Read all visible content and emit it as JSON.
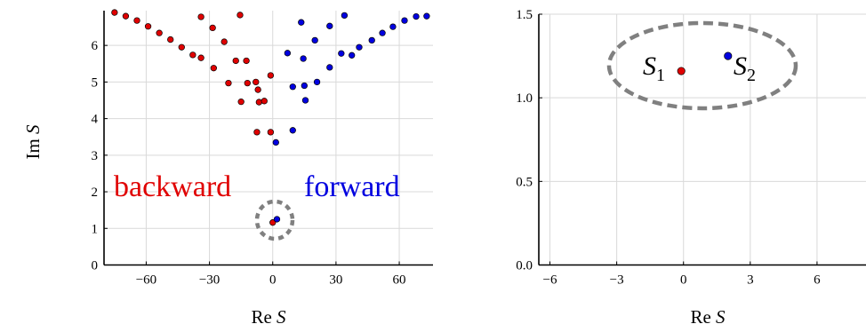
{
  "chart_data": [
    {
      "type": "scatter",
      "title": "",
      "xlabel": "Re S",
      "ylabel": "Im S",
      "xlim": [
        -80,
        76
      ],
      "ylim": [
        0,
        6.95
      ],
      "xticks": [
        -60,
        -30,
        0,
        30,
        60
      ],
      "yticks": [
        0,
        1,
        2,
        3,
        4,
        5,
        6
      ],
      "grid": true,
      "series": [
        {
          "name": "backward",
          "color": "#e00000",
          "points": [
            [
              -75,
              6.9
            ],
            [
              -69.7,
              6.8
            ],
            [
              -64.4,
              6.68
            ],
            [
              -59.1,
              6.52
            ],
            [
              -53.8,
              6.34
            ],
            [
              -48.5,
              6.16
            ],
            [
              -43.2,
              5.95
            ],
            [
              -37.9,
              5.74
            ],
            [
              -34,
              6.78
            ],
            [
              -28.5,
              6.48
            ],
            [
              -23,
              6.1
            ],
            [
              -17.5,
              5.58
            ],
            [
              -12,
              4.97
            ],
            [
              -6.5,
              4.45
            ],
            [
              -1,
              3.63
            ],
            [
              -15.5,
              6.83
            ],
            [
              -12.5,
              5.58
            ],
            [
              -8,
              5.0
            ],
            [
              -4,
              4.48
            ],
            [
              -34,
              5.66
            ],
            [
              -28,
              5.38
            ],
            [
              -21,
              4.97
            ],
            [
              -15,
              4.46
            ],
            [
              -7,
              4.79
            ],
            [
              -1,
              5.18
            ],
            [
              -7.5,
              3.63
            ],
            [
              0,
              1.16
            ]
          ]
        },
        {
          "name": "forward",
          "color": "#0000e0",
          "points": [
            [
              1.5,
              3.35
            ],
            [
              9.5,
              3.68
            ],
            [
              15.5,
              4.5
            ],
            [
              21,
              5.0
            ],
            [
              27,
              5.4
            ],
            [
              32.5,
              5.78
            ],
            [
              7,
              5.79
            ],
            [
              14.5,
              5.64
            ],
            [
              9.5,
              4.87
            ],
            [
              15,
              4.9
            ],
            [
              13.5,
              6.63
            ],
            [
              20,
              6.14
            ],
            [
              27,
              6.53
            ],
            [
              34,
              6.82
            ],
            [
              37.5,
              5.73
            ],
            [
              41,
              5.95
            ],
            [
              47,
              6.14
            ],
            [
              52,
              6.34
            ],
            [
              57,
              6.51
            ],
            [
              62.5,
              6.68
            ],
            [
              68,
              6.79
            ],
            [
              73,
              6.8
            ],
            [
              2,
              1.25
            ]
          ]
        }
      ],
      "annotations": [
        "backward",
        "forward"
      ]
    },
    {
      "type": "scatter",
      "title": "",
      "xlabel": "Re S",
      "ylabel": "",
      "xlim": [
        -6.5,
        8.2
      ],
      "ylim": [
        0,
        1.5
      ],
      "xticks": [
        -6,
        -3,
        0,
        3,
        6
      ],
      "yticks": [
        0.0,
        0.5,
        1.0,
        1.5
      ],
      "ytick_labels": [
        "0.0",
        "0.5",
        "1.0",
        "1.5"
      ],
      "grid": true,
      "series": [
        {
          "name": "S1",
          "color": "#e00000",
          "points": [
            [
              -0.1,
              1.16
            ]
          ]
        },
        {
          "name": "S2",
          "color": "#0000e0",
          "points": [
            [
              2.0,
              1.25
            ]
          ]
        }
      ],
      "annotations": [
        "S1",
        "S2"
      ]
    }
  ],
  "labels": {
    "left_xlabel_main": "Re ",
    "left_xlabel_var": "S",
    "right_xlabel_main": "Re ",
    "right_xlabel_var": "S",
    "ylabel_main": "Im ",
    "ylabel_var": "S",
    "backward": "backward",
    "forward": "forward",
    "s1_main": "S",
    "s1_sub": "1",
    "s2_main": "S",
    "s2_sub": "2"
  },
  "colors": {
    "backward": "#e00000",
    "forward": "#0000e0",
    "circle": "#808080",
    "grid": "#d9d9d9"
  }
}
